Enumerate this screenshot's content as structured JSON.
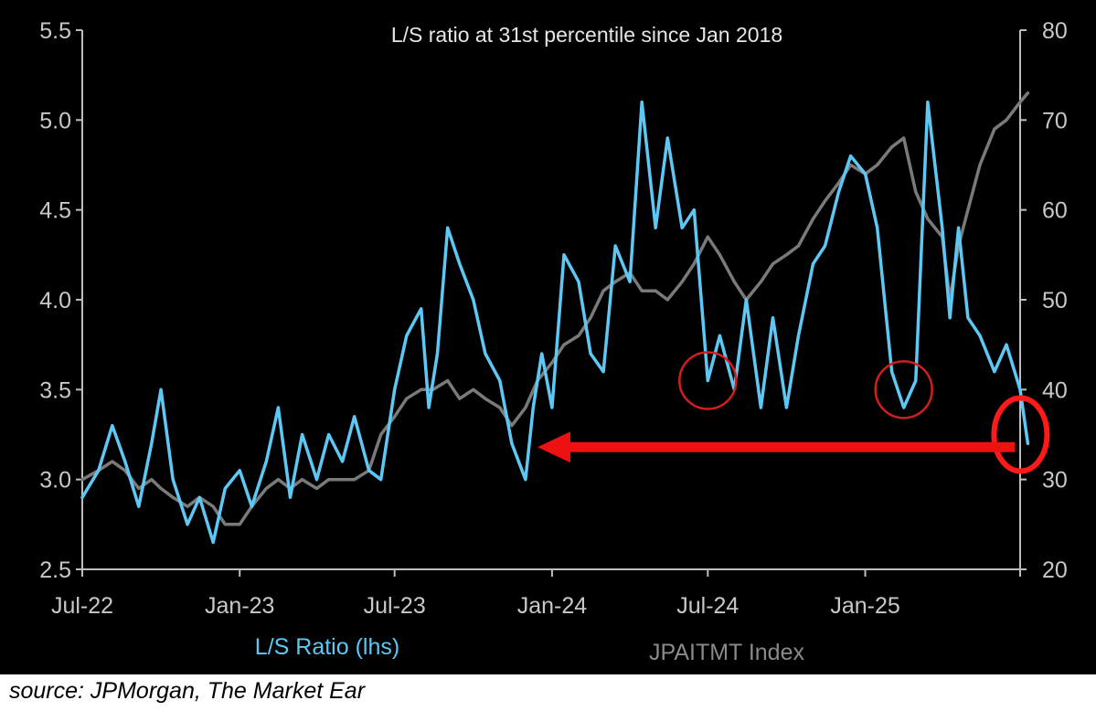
{
  "chart_data": {
    "type": "line",
    "title": "L/S ratio at 31st percentile since Jan 2018",
    "x_tick_labels": [
      "Jul-22",
      "Jan-23",
      "Jul-23",
      "Jan-24",
      "Jul-24",
      "Jan-25"
    ],
    "x_range": [
      "2022-07",
      "2025-07"
    ],
    "y_left": {
      "ticks": [
        "2.5",
        "3.0",
        "3.5",
        "4.0",
        "4.5",
        "5.0",
        "5.5"
      ],
      "range": [
        2.5,
        5.5
      ]
    },
    "y_right": {
      "ticks": [
        "20",
        "30",
        "40",
        "50",
        "60",
        "70",
        "80"
      ],
      "range": [
        20,
        80
      ]
    },
    "grid": false,
    "legend_placement": "bottom",
    "series": [
      {
        "name": "L/S Ratio (lhs)",
        "axis": "left",
        "color": "#5ec8f5",
        "points": [
          [
            "2022-07-01",
            2.9
          ],
          [
            "2022-07-20",
            3.05
          ],
          [
            "2022-08-05",
            3.3
          ],
          [
            "2022-08-20",
            3.1
          ],
          [
            "2022-09-05",
            2.85
          ],
          [
            "2022-09-20",
            3.2
          ],
          [
            "2022-10-01",
            3.5
          ],
          [
            "2022-10-15",
            3.0
          ],
          [
            "2022-11-01",
            2.75
          ],
          [
            "2022-11-15",
            2.9
          ],
          [
            "2022-12-01",
            2.65
          ],
          [
            "2022-12-15",
            2.95
          ],
          [
            "2023-01-01",
            3.05
          ],
          [
            "2023-01-15",
            2.85
          ],
          [
            "2023-02-01",
            3.1
          ],
          [
            "2023-02-15",
            3.4
          ],
          [
            "2023-03-01",
            2.9
          ],
          [
            "2023-03-15",
            3.25
          ],
          [
            "2023-04-01",
            3.0
          ],
          [
            "2023-04-15",
            3.25
          ],
          [
            "2023-05-01",
            3.1
          ],
          [
            "2023-05-15",
            3.35
          ],
          [
            "2023-06-01",
            3.05
          ],
          [
            "2023-06-15",
            3.0
          ],
          [
            "2023-07-01",
            3.5
          ],
          [
            "2023-07-15",
            3.8
          ],
          [
            "2023-08-01",
            3.95
          ],
          [
            "2023-08-10",
            3.4
          ],
          [
            "2023-08-20",
            3.7
          ],
          [
            "2023-09-01",
            4.4
          ],
          [
            "2023-09-15",
            4.2
          ],
          [
            "2023-10-01",
            4.0
          ],
          [
            "2023-10-15",
            3.7
          ],
          [
            "2023-11-01",
            3.55
          ],
          [
            "2023-11-15",
            3.2
          ],
          [
            "2023-12-01",
            3.0
          ],
          [
            "2023-12-10",
            3.4
          ],
          [
            "2023-12-20",
            3.7
          ],
          [
            "2024-01-01",
            3.4
          ],
          [
            "2024-01-15",
            4.25
          ],
          [
            "2024-02-01",
            4.1
          ],
          [
            "2024-02-15",
            3.7
          ],
          [
            "2024-03-01",
            3.6
          ],
          [
            "2024-03-15",
            4.3
          ],
          [
            "2024-04-01",
            4.1
          ],
          [
            "2024-04-15",
            5.1
          ],
          [
            "2024-05-01",
            4.4
          ],
          [
            "2024-05-15",
            4.9
          ],
          [
            "2024-06-01",
            4.4
          ],
          [
            "2024-06-15",
            4.5
          ],
          [
            "2024-07-01",
            3.55
          ],
          [
            "2024-07-15",
            3.8
          ],
          [
            "2024-08-01",
            3.5
          ],
          [
            "2024-08-15",
            4.0
          ],
          [
            "2024-09-01",
            3.4
          ],
          [
            "2024-09-15",
            3.9
          ],
          [
            "2024-10-01",
            3.4
          ],
          [
            "2024-10-15",
            3.8
          ],
          [
            "2024-11-01",
            4.2
          ],
          [
            "2024-11-15",
            4.3
          ],
          [
            "2024-12-01",
            4.6
          ],
          [
            "2024-12-15",
            4.8
          ],
          [
            "2025-01-01",
            4.7
          ],
          [
            "2025-01-15",
            4.4
          ],
          [
            "2025-02-01",
            3.6
          ],
          [
            "2025-02-15",
            3.4
          ],
          [
            "2025-03-01",
            3.55
          ],
          [
            "2025-03-15",
            5.1
          ],
          [
            "2025-04-01",
            4.4
          ],
          [
            "2025-04-10",
            3.9
          ],
          [
            "2025-04-20",
            4.4
          ],
          [
            "2025-05-01",
            3.9
          ],
          [
            "2025-05-15",
            3.8
          ],
          [
            "2025-06-01",
            3.6
          ],
          [
            "2025-06-15",
            3.75
          ],
          [
            "2025-07-01",
            3.5
          ],
          [
            "2025-07-10",
            3.2
          ]
        ]
      },
      {
        "name": "JPAITMT  Index",
        "axis": "right",
        "color": "#7a7a7a",
        "points": [
          [
            "2022-07-01",
            30
          ],
          [
            "2022-07-20",
            31
          ],
          [
            "2022-08-05",
            32
          ],
          [
            "2022-08-20",
            31
          ],
          [
            "2022-09-05",
            29
          ],
          [
            "2022-09-20",
            30
          ],
          [
            "2022-10-01",
            29
          ],
          [
            "2022-10-15",
            28
          ],
          [
            "2022-11-01",
            27
          ],
          [
            "2022-11-15",
            28
          ],
          [
            "2022-12-01",
            27
          ],
          [
            "2022-12-15",
            25
          ],
          [
            "2023-01-01",
            25
          ],
          [
            "2023-01-15",
            27
          ],
          [
            "2023-02-01",
            29
          ],
          [
            "2023-02-15",
            30
          ],
          [
            "2023-03-01",
            29
          ],
          [
            "2023-03-15",
            30
          ],
          [
            "2023-04-01",
            29
          ],
          [
            "2023-04-15",
            30
          ],
          [
            "2023-05-01",
            30
          ],
          [
            "2023-05-15",
            30
          ],
          [
            "2023-06-01",
            31
          ],
          [
            "2023-06-15",
            35
          ],
          [
            "2023-07-01",
            37
          ],
          [
            "2023-07-15",
            39
          ],
          [
            "2023-08-01",
            40
          ],
          [
            "2023-08-15",
            40
          ],
          [
            "2023-09-01",
            41
          ],
          [
            "2023-09-15",
            39
          ],
          [
            "2023-10-01",
            40
          ],
          [
            "2023-10-15",
            39
          ],
          [
            "2023-11-01",
            38
          ],
          [
            "2023-11-15",
            36
          ],
          [
            "2023-12-01",
            38
          ],
          [
            "2023-12-15",
            41
          ],
          [
            "2024-01-01",
            43
          ],
          [
            "2024-01-15",
            45
          ],
          [
            "2024-02-01",
            46
          ],
          [
            "2024-02-15",
            48
          ],
          [
            "2024-03-01",
            51
          ],
          [
            "2024-03-15",
            52
          ],
          [
            "2024-04-01",
            53
          ],
          [
            "2024-04-15",
            51
          ],
          [
            "2024-05-01",
            51
          ],
          [
            "2024-05-15",
            50
          ],
          [
            "2024-06-01",
            52
          ],
          [
            "2024-06-15",
            54
          ],
          [
            "2024-07-01",
            57
          ],
          [
            "2024-07-15",
            55
          ],
          [
            "2024-08-01",
            52
          ],
          [
            "2024-08-15",
            50
          ],
          [
            "2024-09-01",
            52
          ],
          [
            "2024-09-15",
            54
          ],
          [
            "2024-10-01",
            55
          ],
          [
            "2024-10-15",
            56
          ],
          [
            "2024-11-01",
            59
          ],
          [
            "2024-11-15",
            61
          ],
          [
            "2024-12-01",
            63
          ],
          [
            "2024-12-15",
            65
          ],
          [
            "2025-01-01",
            64
          ],
          [
            "2025-01-15",
            65
          ],
          [
            "2025-02-01",
            67
          ],
          [
            "2025-02-15",
            68
          ],
          [
            "2025-03-01",
            62
          ],
          [
            "2025-03-15",
            59
          ],
          [
            "2025-04-01",
            57
          ],
          [
            "2025-04-10",
            50
          ],
          [
            "2025-04-20",
            56
          ],
          [
            "2025-05-01",
            60
          ],
          [
            "2025-05-15",
            65
          ],
          [
            "2025-06-01",
            69
          ],
          [
            "2025-06-15",
            70
          ],
          [
            "2025-07-01",
            72
          ],
          [
            "2025-07-10",
            73
          ]
        ]
      }
    ],
    "annotations": {
      "circles": [
        {
          "x": "2024-07-01",
          "y": 3.55,
          "color": "#d11f1f"
        },
        {
          "x": "2025-02-15",
          "y": 3.5,
          "color": "#d11f1f"
        },
        {
          "x": "2025-07-10",
          "y": 3.25,
          "color": "#ff1a1a"
        }
      ],
      "arrow": {
        "from": {
          "x": "2025-06-25",
          "y": 3.18
        },
        "to": {
          "x": "2023-12-15",
          "y": 3.18
        },
        "color": "#ee1111"
      }
    }
  },
  "source": "source: JPMorgan, The Market Ear",
  "colors": {
    "background": "#000000",
    "axis_text": "#c8c8c8",
    "title_text": "#e6e6e6"
  }
}
